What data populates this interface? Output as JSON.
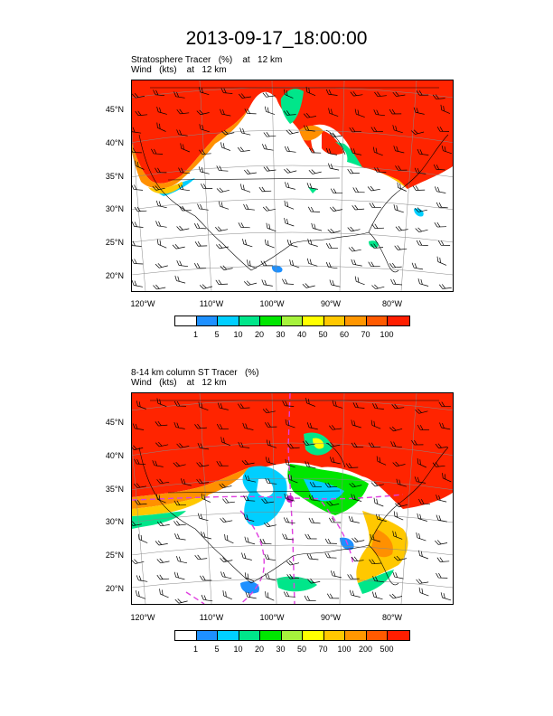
{
  "title": "2013-09-17_18:00:00",
  "panels": [
    {
      "line1": "Stratosphere Tracer   (%)    at   12 km",
      "line2": "Wind   (kts)    at   12 km",
      "colorbar_labels": [
        "1",
        "5",
        "10",
        "20",
        "30",
        "40",
        "50",
        "60",
        "70",
        "100"
      ]
    },
    {
      "line1": "8-14 km column ST Tracer   (%)",
      "line2": "Wind   (kts)    at   12 km",
      "colorbar_labels": [
        "1",
        "5",
        "10",
        "20",
        "30",
        "50",
        "70",
        "100",
        "200",
        "500"
      ]
    }
  ],
  "lat_labels": [
    "45°N",
    "40°N",
    "35°N",
    "30°N",
    "25°N",
    "20°N"
  ],
  "lon_labels": [
    "120°W",
    "110°W",
    "100°W",
    "90°W",
    "80°W"
  ],
  "colors": [
    "#ffffff",
    "#1e90ff",
    "#00cfff",
    "#00e68a",
    "#00e600",
    "#a6f23c",
    "#ffff00",
    "#ffc800",
    "#ff9600",
    "#ff5a00",
    "#ff1e00"
  ]
}
